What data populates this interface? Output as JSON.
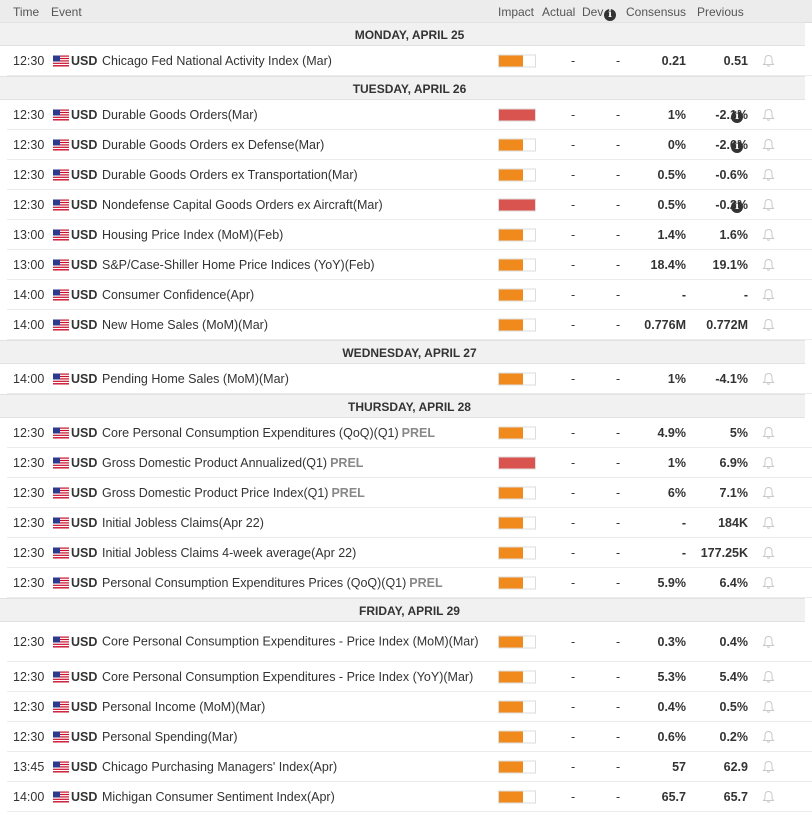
{
  "header": {
    "time": "Time",
    "event": "Event",
    "impact": "Impact",
    "actual": "Actual",
    "dev": "Dev",
    "info_icon": "info-icon",
    "consensus": "Consensus",
    "previous": "Previous"
  },
  "colors": {
    "medium": "#f08a1c",
    "high": "#d9534f"
  },
  "days": [
    {
      "label": "MONDAY, APRIL 25",
      "events": [
        {
          "time": "12:30",
          "currency": "USD",
          "event": "Chicago Fed National Activity Index (Mar)",
          "prel": "",
          "impact": "medium",
          "impact_level": 0.66,
          "actual": "-",
          "dev": "-",
          "consensus": "0.21",
          "previous": "0.51",
          "previous_info": false
        }
      ]
    },
    {
      "label": "TUESDAY, APRIL 26",
      "events": [
        {
          "time": "12:30",
          "currency": "USD",
          "event": "Durable Goods Orders(Mar)",
          "prel": "",
          "impact": "high",
          "impact_level": 1.0,
          "actual": "-",
          "dev": "-",
          "consensus": "1%",
          "previous": "-2.1%",
          "previous_info": true
        },
        {
          "time": "12:30",
          "currency": "USD",
          "event": "Durable Goods Orders ex Defense(Mar)",
          "prel": "",
          "impact": "medium",
          "impact_level": 0.66,
          "actual": "-",
          "dev": "-",
          "consensus": "0%",
          "previous": "-2.6%",
          "previous_info": true
        },
        {
          "time": "12:30",
          "currency": "USD",
          "event": "Durable Goods Orders ex Transportation(Mar)",
          "prel": "",
          "impact": "medium",
          "impact_level": 0.66,
          "actual": "-",
          "dev": "-",
          "consensus": "0.5%",
          "previous": "-0.6%",
          "previous_info": false
        },
        {
          "time": "12:30",
          "currency": "USD",
          "event": "Nondefense Capital Goods Orders ex Aircraft(Mar)",
          "prel": "",
          "impact": "high",
          "impact_level": 1.0,
          "actual": "-",
          "dev": "-",
          "consensus": "0.5%",
          "previous": "-0.2%",
          "previous_info": true
        },
        {
          "time": "13:00",
          "currency": "USD",
          "event": "Housing Price Index (MoM)(Feb)",
          "prel": "",
          "impact": "medium",
          "impact_level": 0.66,
          "actual": "-",
          "dev": "-",
          "consensus": "1.4%",
          "previous": "1.6%",
          "previous_info": false
        },
        {
          "time": "13:00",
          "currency": "USD",
          "event": "S&P/Case-Shiller Home Price Indices (YoY)(Feb)",
          "prel": "",
          "impact": "medium",
          "impact_level": 0.66,
          "actual": "-",
          "dev": "-",
          "consensus": "18.4%",
          "previous": "19.1%",
          "previous_info": false
        },
        {
          "time": "14:00",
          "currency": "USD",
          "event": "Consumer Confidence(Apr)",
          "prel": "",
          "impact": "medium",
          "impact_level": 0.66,
          "actual": "-",
          "dev": "-",
          "consensus": "-",
          "previous": "-",
          "previous_info": false
        },
        {
          "time": "14:00",
          "currency": "USD",
          "event": "New Home Sales (MoM)(Mar)",
          "prel": "",
          "impact": "medium",
          "impact_level": 0.66,
          "actual": "-",
          "dev": "-",
          "consensus": "0.776M",
          "previous": "0.772M",
          "previous_info": false
        }
      ]
    },
    {
      "label": "WEDNESDAY, APRIL 27",
      "events": [
        {
          "time": "14:00",
          "currency": "USD",
          "event": "Pending Home Sales (MoM)(Mar)",
          "prel": "",
          "impact": "medium",
          "impact_level": 0.66,
          "actual": "-",
          "dev": "-",
          "consensus": "1%",
          "previous": "-4.1%",
          "previous_info": false
        }
      ]
    },
    {
      "label": "THURSDAY, APRIL 28",
      "events": [
        {
          "time": "12:30",
          "currency": "USD",
          "event": "Core Personal Consumption Expenditures (QoQ)(Q1)",
          "prel": "PREL",
          "impact": "medium",
          "impact_level": 0.66,
          "actual": "-",
          "dev": "-",
          "consensus": "4.9%",
          "previous": "5%",
          "previous_info": false
        },
        {
          "time": "12:30",
          "currency": "USD",
          "event": "Gross Domestic Product Annualized(Q1)",
          "prel": "PREL",
          "impact": "high",
          "impact_level": 1.0,
          "actual": "-",
          "dev": "-",
          "consensus": "1%",
          "previous": "6.9%",
          "previous_info": false
        },
        {
          "time": "12:30",
          "currency": "USD",
          "event": "Gross Domestic Product Price Index(Q1)",
          "prel": "PREL",
          "impact": "medium",
          "impact_level": 0.66,
          "actual": "-",
          "dev": "-",
          "consensus": "6%",
          "previous": "7.1%",
          "previous_info": false
        },
        {
          "time": "12:30",
          "currency": "USD",
          "event": "Initial Jobless Claims(Apr 22)",
          "prel": "",
          "impact": "medium",
          "impact_level": 0.66,
          "actual": "-",
          "dev": "-",
          "consensus": "-",
          "previous": "184K",
          "previous_info": false
        },
        {
          "time": "12:30",
          "currency": "USD",
          "event": "Initial Jobless Claims 4-week average(Apr 22)",
          "prel": "",
          "impact": "medium",
          "impact_level": 0.66,
          "actual": "-",
          "dev": "-",
          "consensus": "-",
          "previous": "177.25K",
          "previous_info": false
        },
        {
          "time": "12:30",
          "currency": "USD",
          "event": "Personal Consumption Expenditures Prices (QoQ)(Q1)",
          "prel": "PREL",
          "impact": "medium",
          "impact_level": 0.66,
          "actual": "-",
          "dev": "-",
          "consensus": "5.9%",
          "previous": "6.4%",
          "previous_info": false
        }
      ]
    },
    {
      "label": "FRIDAY, APRIL 29",
      "events": [
        {
          "time": "12:30",
          "currency": "USD",
          "event": "Core Personal Consumption Expenditures - Price Index (MoM)(Mar)",
          "prel": "",
          "impact": "medium",
          "impact_level": 0.66,
          "actual": "-",
          "dev": "-",
          "consensus": "0.3%",
          "previous": "0.4%",
          "previous_info": false,
          "wrap": true
        },
        {
          "time": "12:30",
          "currency": "USD",
          "event": "Core Personal Consumption Expenditures - Price Index (YoY)(Mar)",
          "prel": "",
          "impact": "medium",
          "impact_level": 0.66,
          "actual": "-",
          "dev": "-",
          "consensus": "5.3%",
          "previous": "5.4%",
          "previous_info": false
        },
        {
          "time": "12:30",
          "currency": "USD",
          "event": "Personal Income (MoM)(Mar)",
          "prel": "",
          "impact": "medium",
          "impact_level": 0.66,
          "actual": "-",
          "dev": "-",
          "consensus": "0.4%",
          "previous": "0.5%",
          "previous_info": false
        },
        {
          "time": "12:30",
          "currency": "USD",
          "event": "Personal Spending(Mar)",
          "prel": "",
          "impact": "medium",
          "impact_level": 0.66,
          "actual": "-",
          "dev": "-",
          "consensus": "0.6%",
          "previous": "0.2%",
          "previous_info": false
        },
        {
          "time": "13:45",
          "currency": "USD",
          "event": "Chicago Purchasing Managers' Index(Apr)",
          "prel": "",
          "impact": "medium",
          "impact_level": 0.66,
          "actual": "-",
          "dev": "-",
          "consensus": "57",
          "previous": "62.9",
          "previous_info": false
        },
        {
          "time": "14:00",
          "currency": "USD",
          "event": "Michigan Consumer Sentiment Index(Apr)",
          "prel": "",
          "impact": "medium",
          "impact_level": 0.66,
          "actual": "-",
          "dev": "-",
          "consensus": "65.7",
          "previous": "65.7",
          "previous_info": false
        }
      ]
    }
  ]
}
